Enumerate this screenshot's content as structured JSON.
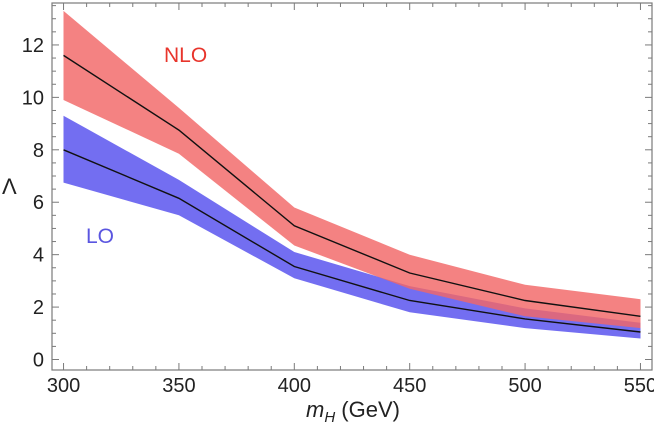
{
  "chart_data": {
    "type": "area",
    "title": "",
    "xlabel_var": "m",
    "xlabel_sub": "H",
    "xlabel_unit": " (GeV)",
    "ylabel": "Λ",
    "xlim": [
      295,
      555
    ],
    "ylim": [
      -0.4,
      13.6
    ],
    "x_ticks": [
      300,
      350,
      400,
      450,
      500,
      550
    ],
    "y_ticks": [
      0,
      2,
      4,
      6,
      8,
      10,
      12
    ],
    "x": [
      300,
      350,
      400,
      450,
      500,
      550
    ],
    "series": [
      {
        "name": "LO",
        "color": "#6b66f0",
        "label_color": "#5a55e0",
        "central": [
          8.0,
          6.15,
          3.55,
          2.25,
          1.55,
          1.05
        ],
        "upper": [
          9.3,
          6.85,
          4.1,
          2.8,
          1.95,
          1.4
        ],
        "lower": [
          6.75,
          5.5,
          3.1,
          1.8,
          1.2,
          0.8
        ]
      },
      {
        "name": "NLO",
        "color": "#f26666",
        "label_color": "#e8352c",
        "central": [
          11.6,
          8.75,
          5.1,
          3.3,
          2.25,
          1.65
        ],
        "upper": [
          13.3,
          9.6,
          5.8,
          4.0,
          2.85,
          2.3
        ],
        "lower": [
          9.9,
          7.85,
          4.35,
          2.7,
          1.65,
          1.2
        ]
      }
    ]
  }
}
